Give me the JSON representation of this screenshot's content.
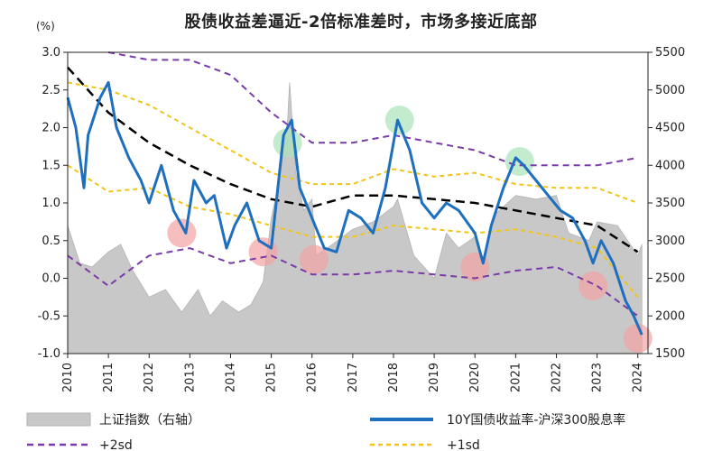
{
  "chart_data": {
    "type": "line",
    "title": "股债收益差逼近-2倍标准差时，市场多接近底部",
    "y_left_unit": "(%)",
    "y_left_lim": [
      -1.0,
      3.0
    ],
    "y_left_ticks": [
      "3.0",
      "2.5",
      "2.0",
      "1.5",
      "1.0",
      "0.5",
      "0.0",
      "-0.5",
      "-1.0"
    ],
    "y_right_lim": [
      1500,
      5500
    ],
    "y_right_ticks": [
      "5500",
      "5000",
      "4500",
      "4000",
      "3500",
      "3000",
      "2500",
      "2000",
      "1500"
    ],
    "x_lim": [
      2010.0,
      2024.25
    ],
    "x_ticks": [
      "2010",
      "2011",
      "2012",
      "2013",
      "2014",
      "2015",
      "2016",
      "2017",
      "2018",
      "2019",
      "2020",
      "2021",
      "2022",
      "2023",
      "2024"
    ],
    "legend": {
      "index": "上证指数（右轴）",
      "spread": "10Y国债收益率-沪深300股息率",
      "plus2sd": "+2sd",
      "plus1sd": "+1sd"
    },
    "series": [
      {
        "name": "上证指数（右轴）",
        "axis": "right",
        "style": "area",
        "x": [
          2010.0,
          2010.3,
          2010.6,
          2011.0,
          2011.3,
          2011.6,
          2012.0,
          2012.4,
          2012.8,
          2013.2,
          2013.5,
          2013.8,
          2014.2,
          2014.5,
          2014.8,
          2015.0,
          2015.2,
          2015.4,
          2015.45,
          2015.6,
          2015.8,
          2016.0,
          2016.1,
          2016.5,
          2017.0,
          2017.5,
          2018.0,
          2018.1,
          2018.5,
          2019.0,
          2019.3,
          2019.6,
          2020.0,
          2020.2,
          2020.5,
          2021.0,
          2021.5,
          2022.0,
          2022.3,
          2022.8,
          2023.0,
          2023.5,
          2024.0,
          2024.1
        ],
        "values": [
          3200,
          2700,
          2650,
          2850,
          2950,
          2600,
          2250,
          2350,
          2050,
          2350,
          2000,
          2200,
          2050,
          2150,
          2450,
          3300,
          3800,
          4600,
          5100,
          3900,
          3400,
          3550,
          2800,
          2950,
          3150,
          3250,
          3450,
          3550,
          2800,
          2500,
          3100,
          2900,
          3050,
          2750,
          3350,
          3600,
          3550,
          3600,
          3100,
          3000,
          3250,
          3200,
          2800,
          2950
        ]
      },
      {
        "name": "10Y国债收益率-沪深300股息率",
        "axis": "left",
        "style": "line",
        "x": [
          2010.0,
          2010.2,
          2010.4,
          2010.5,
          2010.8,
          2011.0,
          2011.2,
          2011.5,
          2011.8,
          2012.0,
          2012.3,
          2012.6,
          2012.9,
          2013.1,
          2013.4,
          2013.6,
          2013.9,
          2014.1,
          2014.4,
          2014.7,
          2015.0,
          2015.3,
          2015.5,
          2015.7,
          2016.0,
          2016.3,
          2016.6,
          2016.9,
          2017.2,
          2017.5,
          2017.8,
          2018.0,
          2018.1,
          2018.4,
          2018.7,
          2019.0,
          2019.3,
          2019.6,
          2020.0,
          2020.2,
          2020.4,
          2020.7,
          2021.0,
          2021.2,
          2021.5,
          2021.8,
          2022.1,
          2022.4,
          2022.7,
          2022.9,
          2023.1,
          2023.4,
          2023.7,
          2023.9,
          2024.1
        ],
        "values": [
          2.4,
          2.0,
          1.2,
          1.9,
          2.4,
          2.6,
          2.0,
          1.6,
          1.3,
          1.0,
          1.5,
          0.9,
          0.6,
          1.3,
          1.0,
          1.1,
          0.4,
          0.7,
          1.0,
          0.5,
          0.4,
          1.9,
          2.1,
          1.2,
          0.8,
          0.4,
          0.35,
          0.9,
          0.8,
          0.6,
          1.2,
          1.8,
          2.1,
          1.7,
          1.0,
          0.8,
          1.0,
          0.9,
          0.6,
          0.2,
          0.7,
          1.2,
          1.6,
          1.5,
          1.3,
          1.1,
          0.9,
          0.8,
          0.5,
          0.2,
          0.5,
          0.2,
          -0.3,
          -0.5,
          -0.75
        ]
      },
      {
        "name": "mean",
        "axis": "left",
        "style": "dashed-black",
        "x": [
          2010.0,
          2011.0,
          2012.0,
          2013.0,
          2014.0,
          2015.0,
          2016.0,
          2017.0,
          2018.0,
          2019.0,
          2020.0,
          2021.0,
          2022.0,
          2023.0,
          2024.0
        ],
        "values": [
          2.8,
          2.2,
          1.8,
          1.5,
          1.25,
          1.05,
          0.95,
          1.1,
          1.1,
          1.05,
          1.0,
          0.9,
          0.8,
          0.7,
          0.35
        ]
      },
      {
        "name": "+2sd",
        "axis": "left",
        "style": "dashed-purple",
        "x": [
          2011.0,
          2012.0,
          2013.0,
          2014.0,
          2015.0,
          2016.0,
          2017.0,
          2018.0,
          2019.0,
          2020.0,
          2021.0,
          2022.0,
          2023.0,
          2024.0
        ],
        "values": [
          3.0,
          2.9,
          2.9,
          2.7,
          2.2,
          1.8,
          1.8,
          1.9,
          1.8,
          1.7,
          1.5,
          1.5,
          1.5,
          1.6
        ]
      },
      {
        "name": "-2sd",
        "axis": "left",
        "style": "dashed-purple",
        "x": [
          2010.0,
          2011.0,
          2012.0,
          2013.0,
          2014.0,
          2015.0,
          2016.0,
          2017.0,
          2018.0,
          2019.0,
          2020.0,
          2021.0,
          2022.0,
          2023.0,
          2024.0
        ],
        "values": [
          0.3,
          -0.1,
          0.3,
          0.4,
          0.2,
          0.3,
          0.05,
          0.05,
          0.1,
          0.05,
          0.0,
          0.1,
          0.15,
          -0.1,
          -0.5
        ]
      },
      {
        "name": "+1sd",
        "axis": "left",
        "style": "dashed-yellow",
        "x": [
          2010.0,
          2011.0,
          2012.0,
          2013.0,
          2014.0,
          2015.0,
          2016.0,
          2017.0,
          2018.0,
          2019.0,
          2020.0,
          2021.0,
          2022.0,
          2023.0,
          2024.0
        ],
        "values": [
          2.6,
          2.5,
          2.3,
          2.0,
          1.7,
          1.4,
          1.25,
          1.25,
          1.45,
          1.35,
          1.4,
          1.25,
          1.2,
          1.2,
          1.0
        ]
      },
      {
        "name": "-1sd",
        "axis": "left",
        "style": "dashed-yellow",
        "x": [
          2010.0,
          2011.0,
          2012.0,
          2013.0,
          2014.0,
          2015.0,
          2016.0,
          2017.0,
          2018.0,
          2019.0,
          2020.0,
          2021.0,
          2022.0,
          2023.0,
          2024.0
        ],
        "values": [
          1.5,
          1.15,
          1.2,
          0.95,
          0.85,
          0.7,
          0.55,
          0.55,
          0.7,
          0.65,
          0.6,
          0.65,
          0.55,
          0.4,
          -0.25
        ]
      }
    ],
    "highlights": [
      {
        "x": 2012.8,
        "y": 0.6,
        "color": "#f2a3a3"
      },
      {
        "x": 2014.8,
        "y": 0.35,
        "color": "#f2a3a3"
      },
      {
        "x": 2016.05,
        "y": 0.25,
        "color": "#f2a3a3"
      },
      {
        "x": 2020.0,
        "y": 0.15,
        "color": "#f2a3a3"
      },
      {
        "x": 2022.9,
        "y": -0.1,
        "color": "#f2a3a3"
      },
      {
        "x": 2024.0,
        "y": -0.8,
        "color": "#f2a3a3"
      },
      {
        "x": 2015.4,
        "y": 1.8,
        "color": "#a9e3b8"
      },
      {
        "x": 2018.15,
        "y": 2.1,
        "color": "#a9e3b8"
      },
      {
        "x": 2021.1,
        "y": 1.55,
        "color": "#a9e3b8"
      }
    ],
    "colors": {
      "spread": "#1f6fbf",
      "index": "#c8c8c8",
      "mean": "#000000",
      "plus2sd": "#7a3aa8",
      "plus1sd": "#f2c318"
    }
  }
}
